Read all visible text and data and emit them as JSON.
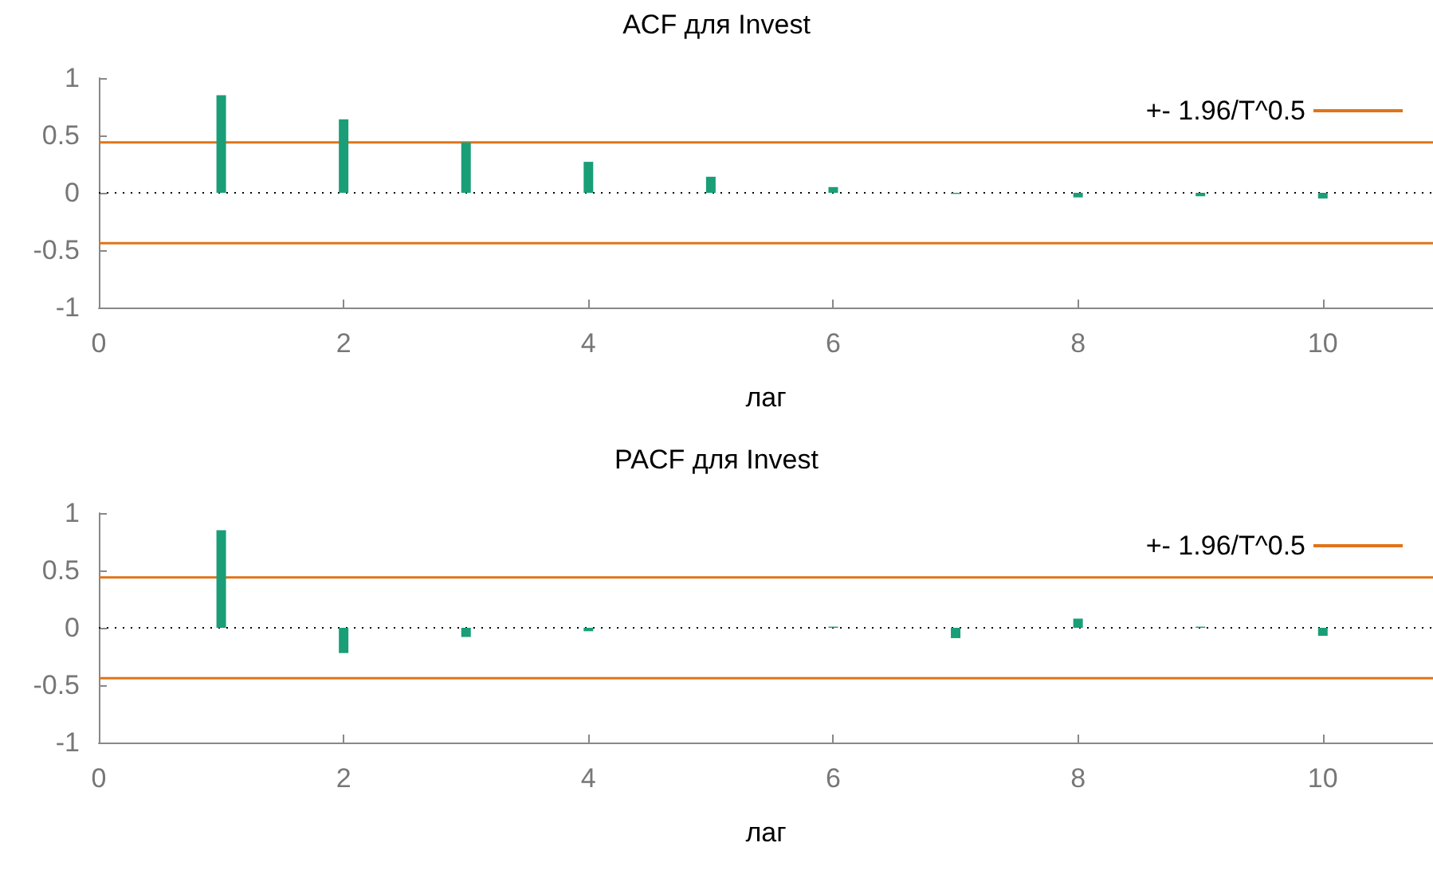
{
  "chart_data": [
    {
      "type": "bar",
      "title": "ACF для Invest",
      "xlabel": "лаг",
      "x": [
        1,
        2,
        3,
        4,
        5,
        6,
        7,
        8,
        9,
        10
      ],
      "values": [
        0.85,
        0.64,
        0.44,
        0.27,
        0.14,
        0.05,
        -0.01,
        -0.04,
        -0.03,
        -0.05
      ],
      "color": "#1a9e77",
      "xlim": [
        0,
        10.9
      ],
      "xticks": [
        0,
        2,
        4,
        6,
        8,
        10
      ],
      "ylim": [
        -1,
        1
      ],
      "yticks": [
        -1,
        -0.5,
        0,
        0.5,
        1
      ],
      "grid": false,
      "legend": "top right",
      "ref_lines": [
        {
          "axis": "y",
          "value": 0.44,
          "label": "+- 1.96/T^0.5",
          "color": "#e0741a"
        },
        {
          "axis": "y",
          "value": -0.44,
          "color": "#e0741a"
        },
        {
          "axis": "y",
          "value": 0,
          "color": "#000000",
          "line_style": "dotted"
        }
      ]
    },
    {
      "type": "bar",
      "title": "PACF для Invest",
      "xlabel": "лаг",
      "x": [
        1,
        2,
        3,
        4,
        5,
        6,
        7,
        8,
        9,
        10
      ],
      "values": [
        0.85,
        -0.22,
        -0.08,
        -0.03,
        0.0,
        0.01,
        -0.09,
        0.08,
        0.01,
        -0.07
      ],
      "color": "#1a9e77",
      "xlim": [
        0,
        10.9
      ],
      "xticks": [
        0,
        2,
        4,
        6,
        8,
        10
      ],
      "ylim": [
        -1,
        1
      ],
      "yticks": [
        -1,
        -0.5,
        0,
        0.5,
        1
      ],
      "grid": false,
      "legend": "top right",
      "ref_lines": [
        {
          "axis": "y",
          "value": 0.44,
          "label": "+- 1.96/T^0.5",
          "color": "#e0741a"
        },
        {
          "axis": "y",
          "value": -0.44,
          "color": "#e0741a"
        },
        {
          "axis": "y",
          "value": 0,
          "color": "#000000",
          "line_style": "dotted"
        }
      ]
    }
  ]
}
